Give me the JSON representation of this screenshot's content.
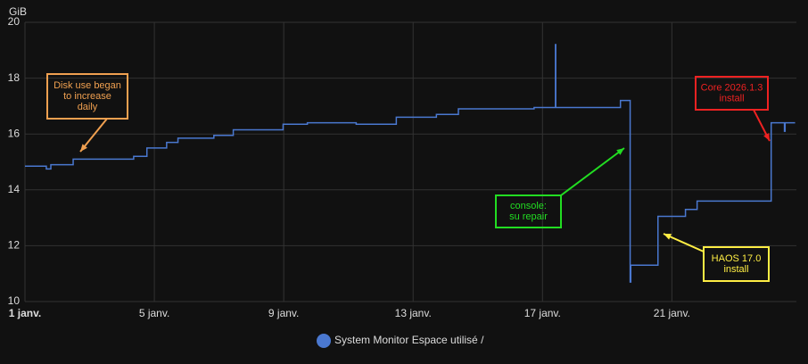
{
  "chart_data": {
    "type": "line",
    "y_unit": "GiB",
    "x": [
      1,
      1.66,
      1.66,
      1.8,
      1.8,
      2.49,
      2.49,
      4.36,
      4.36,
      4.77,
      4.77,
      5.38,
      5.38,
      5.73,
      5.73,
      6.84,
      6.84,
      7.44,
      7.44,
      8.98,
      8.98,
      9.73,
      9.73,
      11.24,
      11.24,
      12.48,
      12.48,
      13.72,
      13.72,
      14.4,
      14.4,
      16.74,
      16.74,
      17.4,
      17.4,
      17.41,
      17.41,
      19.41,
      19.41,
      19.71,
      19.71,
      19.73,
      19.73,
      20.57,
      20.57,
      21.42,
      21.42,
      21.78,
      21.78,
      24.07,
      24.07,
      24.48,
      24.48,
      24.5,
      24.5,
      24.81
    ],
    "series": [
      {
        "name": "System Monitor Espace utilisé /",
        "color": "#4a78d0",
        "values": [
          14.85,
          14.85,
          14.75,
          14.75,
          14.9,
          14.9,
          15.1,
          15.1,
          15.2,
          15.2,
          15.5,
          15.5,
          15.7,
          15.7,
          15.85,
          15.85,
          15.95,
          15.95,
          16.15,
          16.15,
          16.35,
          16.35,
          16.4,
          16.4,
          16.35,
          16.35,
          16.6,
          16.6,
          16.7,
          16.7,
          16.9,
          16.9,
          16.95,
          16.95,
          19.2,
          19.2,
          16.95,
          16.95,
          17.2,
          17.2,
          10.7,
          10.7,
          11.3,
          11.3,
          13.05,
          13.05,
          13.3,
          13.3,
          13.6,
          13.6,
          16.4,
          16.4,
          16.1,
          16.1,
          16.4,
          16.4
        ]
      }
    ],
    "xlim": [
      1,
      24.85
    ],
    "xticks": [
      {
        "value": 1,
        "label": "1 janv."
      },
      {
        "value": 5,
        "label": "5 janv."
      },
      {
        "value": 9,
        "label": "9 janv."
      },
      {
        "value": 13,
        "label": "13 janv."
      },
      {
        "value": 17,
        "label": "17 janv."
      },
      {
        "value": 21,
        "label": "21 janv."
      }
    ],
    "ylim": [
      10,
      20
    ],
    "yticks": [
      10,
      12,
      14,
      16,
      18,
      20
    ],
    "grid": true,
    "annotations": [
      {
        "lines": [
          "Disk use began",
          "to increase",
          "daily"
        ],
        "color": "#f0a050"
      },
      {
        "lines": [
          "console:",
          "su repair"
        ],
        "color": "#22dd22"
      },
      {
        "lines": [
          "HAOS 17.0",
          "install"
        ],
        "color": "#ffee44"
      },
      {
        "lines": [
          "Core 2026.1.3",
          "install"
        ],
        "color": "#ee2222"
      }
    ]
  }
}
